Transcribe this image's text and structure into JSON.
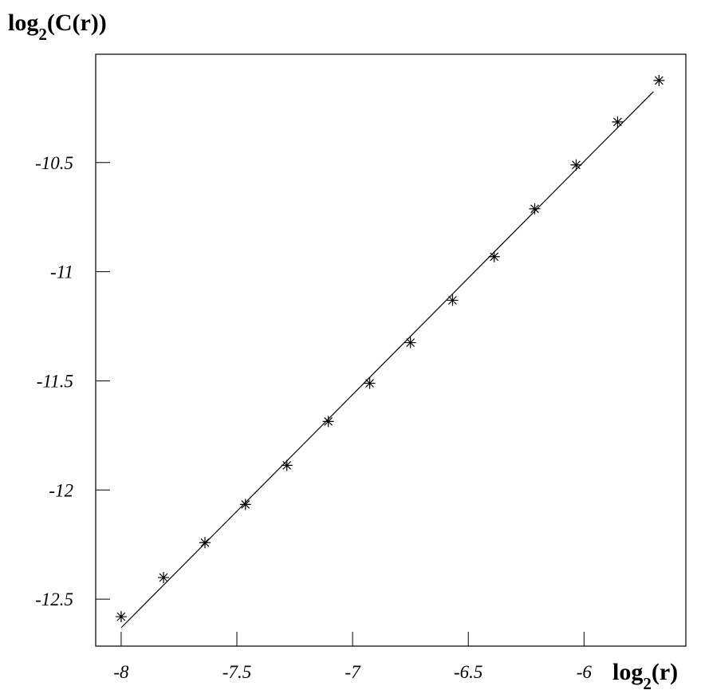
{
  "chart_data": {
    "type": "scatter",
    "x_label": [
      "log",
      "2",
      "(r)"
    ],
    "y_label": [
      "log",
      "2",
      "(C(r))"
    ],
    "x": [
      -8.0,
      -7.817,
      -7.638,
      -7.463,
      -7.284,
      -7.105,
      -6.926,
      -6.75,
      -6.568,
      -6.388,
      -6.213,
      -6.034,
      -5.855,
      -5.676
    ],
    "y": [
      -12.58,
      -12.401,
      -12.241,
      -12.066,
      -11.887,
      -11.686,
      -11.511,
      -11.325,
      -11.131,
      -10.931,
      -10.712,
      -10.511,
      -10.314,
      -10.124
    ],
    "fit": {
      "x": [
        -8.0,
        -5.7
      ],
      "y": [
        -12.631,
        -10.175
      ]
    },
    "color": "#000000",
    "xlim": [
      -8.11,
      -5.56
    ],
    "xticks": [
      -8,
      -7.5,
      -7,
      -6.5,
      -6
    ],
    "ylim": [
      -12.715,
      -10.004
    ],
    "yticks": [
      -12.5,
      -12,
      -11.5,
      -11,
      -10.5
    ]
  }
}
